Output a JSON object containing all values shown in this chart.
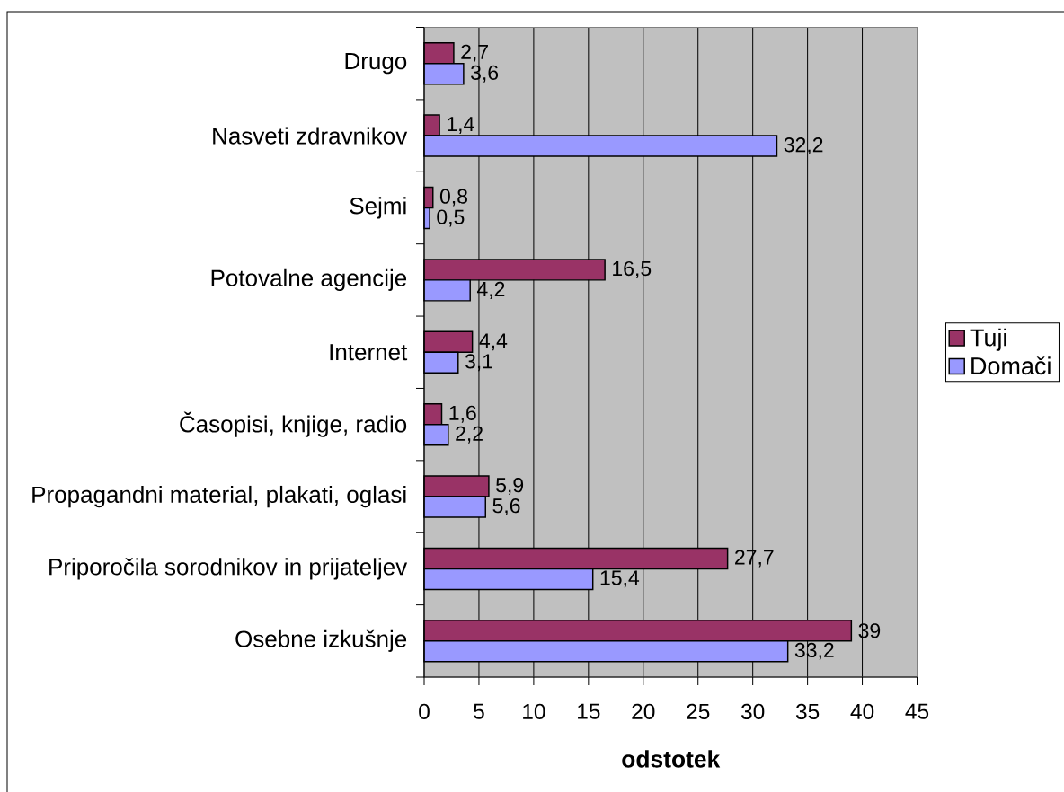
{
  "chart_data": {
    "type": "bar",
    "orientation": "horizontal",
    "xlabel": "odstotek",
    "categories": [
      "Drugo",
      "Nasveti zdravnikov",
      "Sejmi",
      "Potovalne agencije",
      "Internet",
      "Časopisi, knjige, radio",
      "Propagandni material, plakati, oglasi",
      "Priporočila sorodnikov in prijateljev",
      "Osebne izkušnje"
    ],
    "series": [
      {
        "name": "Tuji",
        "color": "#993366",
        "values": [
          2.7,
          1.4,
          0.8,
          16.5,
          4.4,
          1.6,
          5.9,
          27.7,
          39
        ],
        "value_labels": [
          "2,7",
          "1,4",
          "0,8",
          "16,5",
          "4,4",
          "1,6",
          "5,9",
          "27,7",
          "39"
        ]
      },
      {
        "name": "Domači",
        "color": "#9999ff",
        "values": [
          3.6,
          32.2,
          0.5,
          4.2,
          3.1,
          2.2,
          5.6,
          15.4,
          33.2
        ],
        "value_labels": [
          "3,6",
          "32,2",
          "0,5",
          "4,2",
          "3,1",
          "2,2",
          "5,6",
          "15,4",
          "33,2"
        ]
      }
    ],
    "xlim": [
      0,
      45
    ],
    "xticks": [
      0,
      5,
      10,
      15,
      20,
      25,
      30,
      35,
      40,
      45
    ],
    "grid": "x",
    "legend": "right"
  }
}
